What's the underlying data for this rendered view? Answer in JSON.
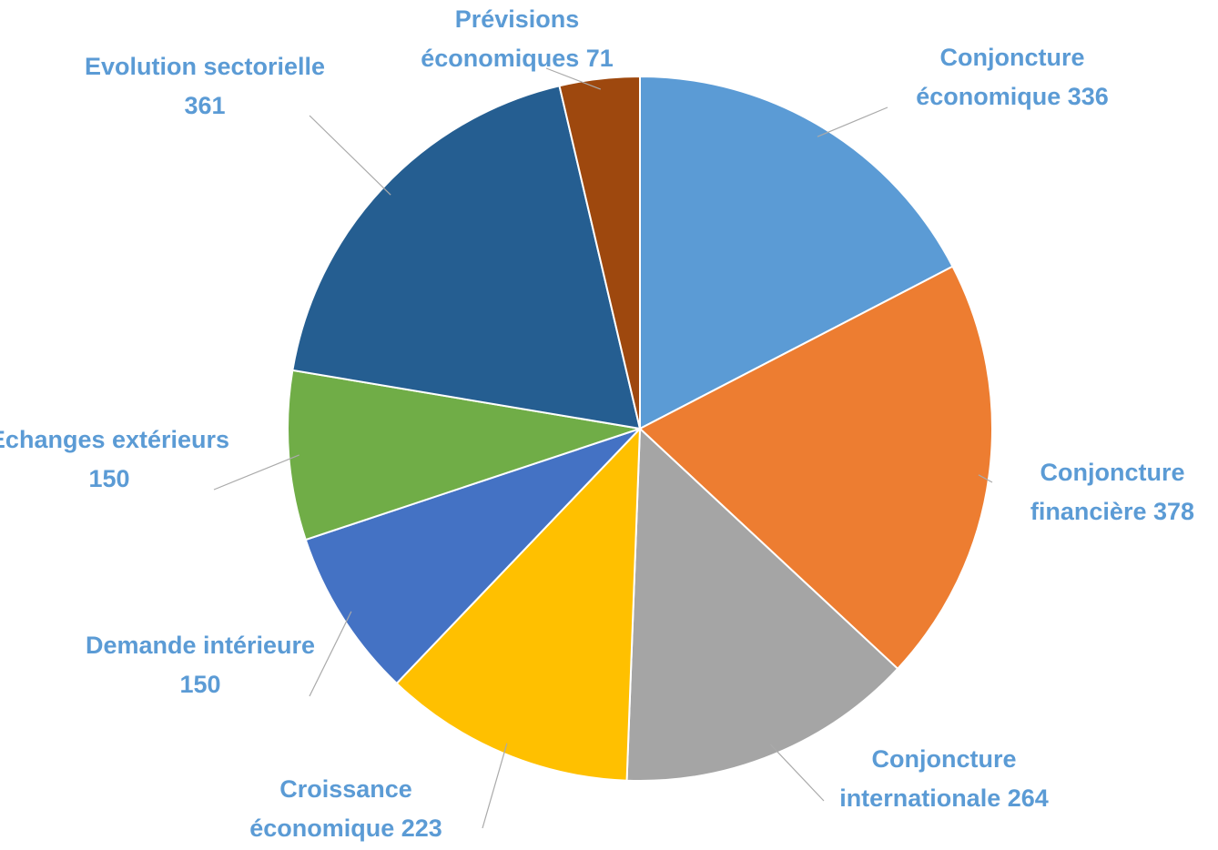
{
  "chart_data": {
    "type": "pie",
    "categories": [
      "Conjoncture économique",
      "Conjoncture financière",
      "Conjoncture internationale",
      "Croissance économique",
      "Demande intérieure",
      "Echanges extérieurs",
      "Evolution sectorielle",
      "Prévisions économiques"
    ],
    "values": [
      336,
      378,
      264,
      223,
      150,
      150,
      361,
      71
    ],
    "colors": [
      "#5b9bd5",
      "#ed7d31",
      "#a5a5a5",
      "#ffc000",
      "#4472c4",
      "#70ad47",
      "#255e91",
      "#9e480e"
    ]
  }
}
